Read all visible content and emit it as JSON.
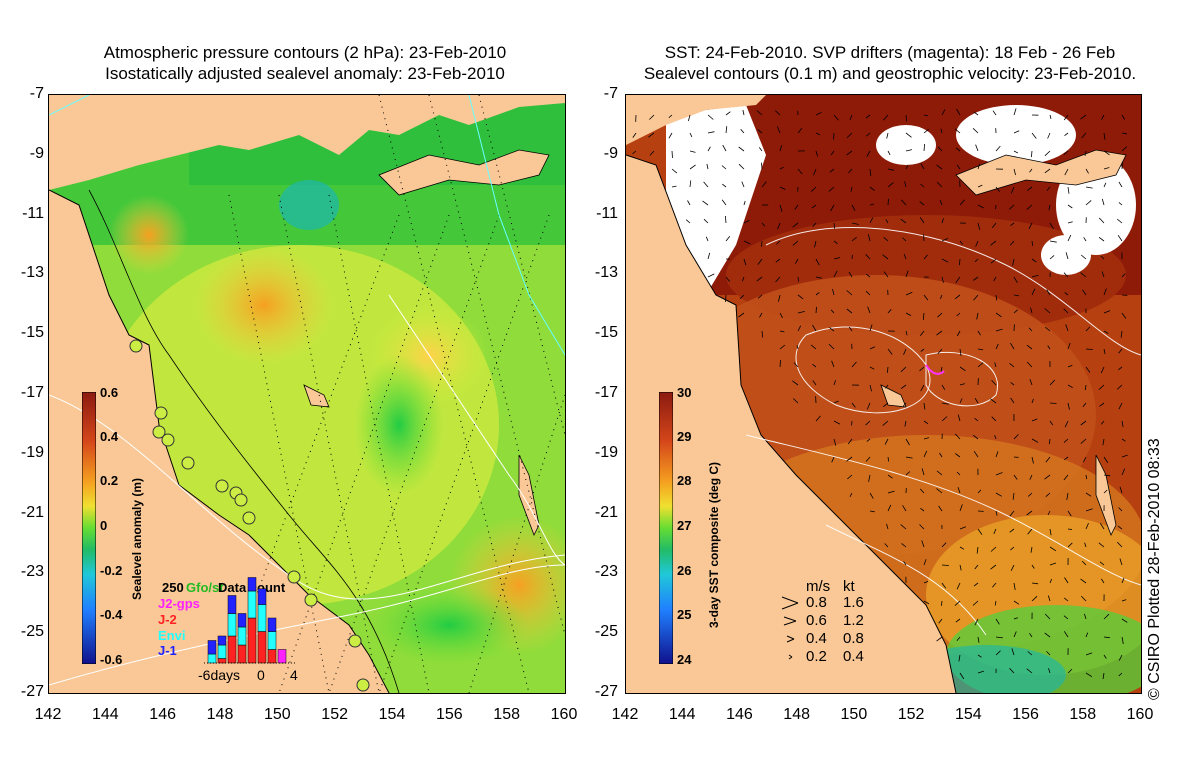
{
  "left_panel": {
    "title_line1": "Atmospheric pressure contours (2 hPa): 23-Feb-2010",
    "title_line2": "Isostatically adjusted sealevel anomaly: 23-Feb-2010",
    "colorbar": {
      "title": "Sealevel anomaly (m)",
      "ticks": [
        "0.6",
        "0.4",
        "0.2",
        "0",
        "-0.2",
        "-0.4",
        "-0.6"
      ]
    },
    "legend": {
      "title": "Data count",
      "count": "250",
      "sources": [
        "Gfo/st",
        "J2-gps",
        "J-2",
        "Envi",
        "J-1"
      ],
      "source_colors": [
        "#22bb22",
        "#ff22ff",
        "#ff2222",
        "#22ffff",
        "#2222ff"
      ],
      "axis_label_days": "-6days",
      "axis_ticks": [
        "0",
        "4"
      ]
    }
  },
  "right_panel": {
    "title_line1": "SST: 24-Feb-2010. SVP drifters (magenta): 18 Feb - 26 Feb",
    "title_line2": "Sealevel contours (0.1 m) and geostrophic velocity: 23-Feb-2010.",
    "colorbar": {
      "title": "3-day SST composite (deg C)",
      "ticks": [
        "30",
        "29",
        "28",
        "27",
        "26",
        "25",
        "24"
      ]
    },
    "velocity_legend": {
      "header_ms": "m/s",
      "header_kt": "kt",
      "rows": [
        {
          "ms": "0.8",
          "kt": "1.6"
        },
        {
          "ms": "0.6",
          "kt": "1.2"
        },
        {
          "ms": "0.4",
          "kt": "0.8"
        },
        {
          "ms": "0.2",
          "kt": "0.4"
        }
      ]
    }
  },
  "axes": {
    "y_ticks": [
      "-7",
      "-9",
      "-11",
      "-13",
      "-15",
      "-17",
      "-19",
      "-21",
      "-23",
      "-25",
      "-27"
    ],
    "x_ticks": [
      "142",
      "144",
      "146",
      "148",
      "150",
      "152",
      "154",
      "156",
      "158",
      "160"
    ]
  },
  "credit": "© CSIRO Plotted 28-Feb-2010 08:33"
}
